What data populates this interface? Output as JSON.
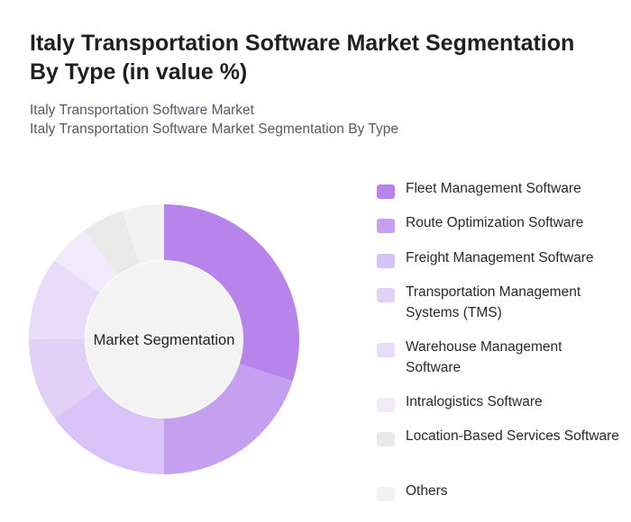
{
  "header": {
    "title": "Italy Transportation Software Market Segmentation By Type (in value %)",
    "subtitle_line1": "Italy Transportation Software Market",
    "subtitle_line2": "Italy Transportation Software Market Segmentation By Type"
  },
  "chart_data": {
    "type": "pie",
    "variant": "donut",
    "center_label": "Market Segmentation",
    "legend_position": "right",
    "categories": [
      "Fleet Management Software",
      "Route Optimization Software",
      "Freight Management Software",
      "Transportation Management Systems (TMS)",
      "Warehouse Management Software",
      "Intralogistics Software",
      "Location-Based Services Software",
      "Others"
    ],
    "values": [
      30,
      20,
      15,
      10,
      10,
      5,
      5,
      5
    ],
    "colors": [
      "#b784ec",
      "#c59ff0",
      "#d9c2f6",
      "#e2d0f7",
      "#e9dcf9",
      "#f1eafb",
      "#e9e9e9",
      "#f2f2f2"
    ]
  }
}
